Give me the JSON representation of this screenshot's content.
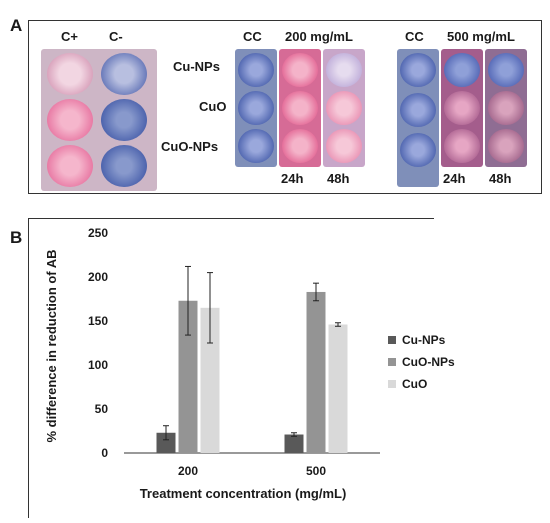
{
  "panels": {
    "a_letter": "A",
    "b_letter": "B"
  },
  "photo": {
    "controls": {
      "pos": "C+",
      "neg": "C-"
    },
    "row_labels": [
      "Cu-NPs",
      "CuO",
      "CuO-NPs"
    ],
    "group200": {
      "cc": "CC",
      "conc": "200 mg/mL",
      "t1": "24h",
      "t2": "48h"
    },
    "group500": {
      "cc": "CC",
      "conc": "500 mg/mL",
      "t1": "24h",
      "t2": "48h"
    },
    "colors": {
      "pink": "#e56a9a",
      "blue": "#3f57a6",
      "lavender": "#b9a6d6",
      "mauve": "#a55a8a"
    }
  },
  "chart_data": {
    "type": "bar",
    "categories": [
      "200",
      "500"
    ],
    "series": [
      {
        "name": "Cu-NPs",
        "values": [
          23,
          21
        ],
        "errors": [
          8,
          2
        ],
        "color": "#595959"
      },
      {
        "name": "CuO-NPs",
        "values": [
          173,
          183
        ],
        "errors": [
          39,
          10
        ],
        "color": "#949494"
      },
      {
        "name": "CuO",
        "values": [
          165,
          146
        ],
        "errors": [
          40,
          2
        ],
        "color": "#d9d9d9"
      }
    ],
    "ylabel": "% difference in reduction of AB",
    "xlabel": "Treatment concentration (mg/mL)",
    "ylim": [
      0,
      250
    ],
    "yticks": [
      "0",
      "50",
      "100",
      "150",
      "200",
      "250"
    ],
    "grid": false,
    "legend": "right"
  }
}
